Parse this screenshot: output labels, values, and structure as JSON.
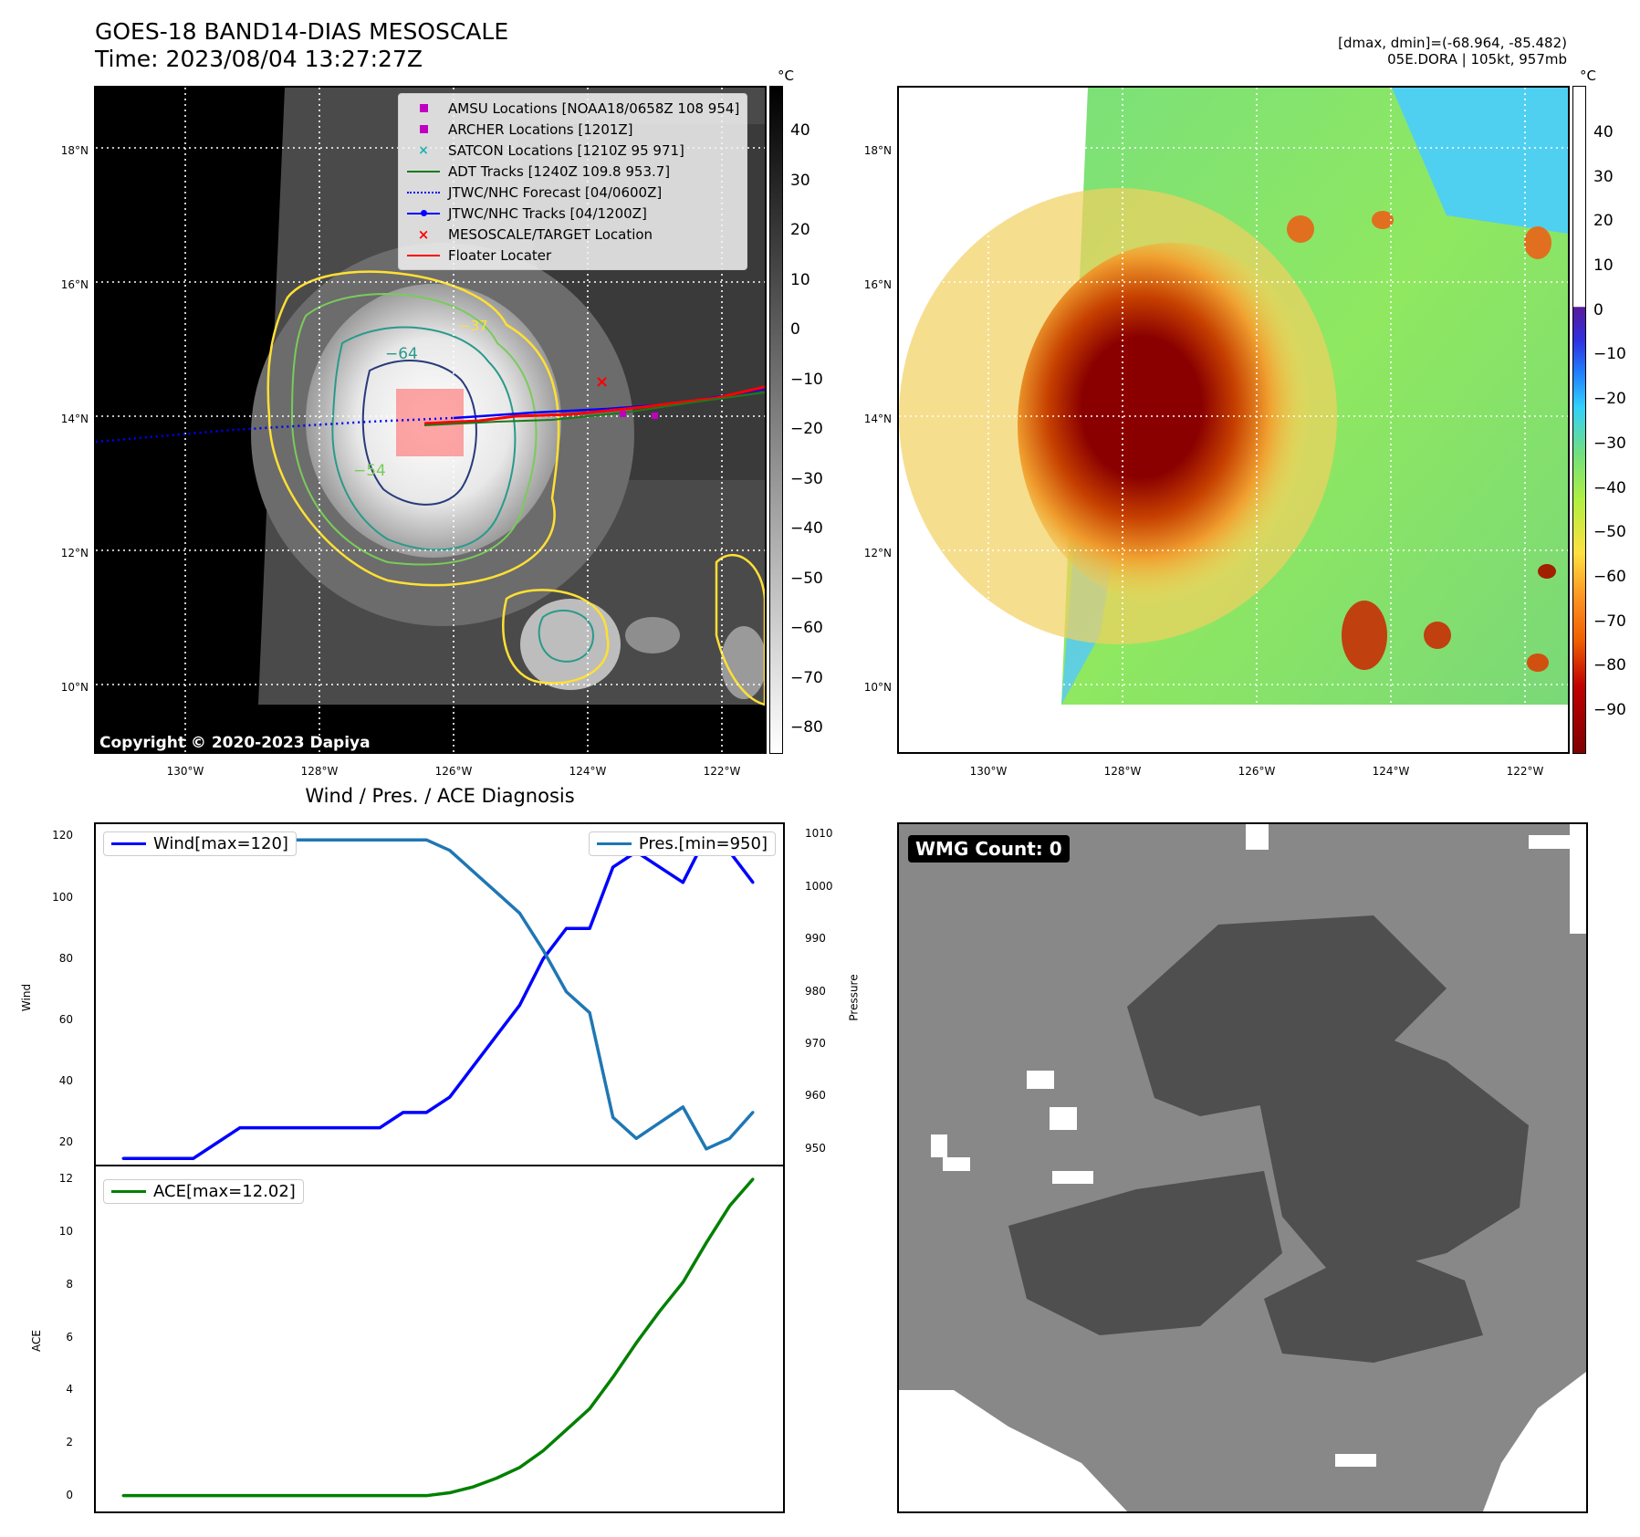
{
  "header": {
    "title_line1": "GOES-18 BAND14-DIAS MESOSCALE",
    "title_line2": "Time: 2023/08/04 13:27:27Z",
    "right_line1": "[dmax, dmin]=(-68.964, -85.482)",
    "right_line2": "05E.DORA | 105kt, 957mb"
  },
  "map_axes": {
    "lat_labels": [
      "18°N",
      "16°N",
      "14°N",
      "12°N",
      "10°N"
    ],
    "lon_labels": [
      "130°W",
      "128°W",
      "126°W",
      "124°W",
      "122°W"
    ]
  },
  "ir_panel": {
    "colorbar_unit": "°C",
    "colorbar_ticks": [
      "40",
      "30",
      "20",
      "10",
      "0",
      "−10",
      "−20",
      "−30",
      "−40",
      "−50",
      "−60",
      "−70",
      "−80"
    ],
    "contour_labels": [
      "−64",
      "−54",
      "−37"
    ],
    "copyright": "Copyright © 2020-2023 Dapiya",
    "legend": [
      {
        "label": "AMSU Locations [NOAA18/0658Z 108 954]",
        "color": "#c000c0"
      },
      {
        "label": "ARCHER Locations [1201Z]",
        "color": "#c000c0"
      },
      {
        "label": "SATCON Locations [1210Z 95 971]",
        "color": "#20b0b0"
      },
      {
        "label": "ADT Tracks [1240Z 109.8 953.7]",
        "color": "#1a7a1a"
      },
      {
        "label": "JTWC/NHC Forecast [04/0600Z]",
        "color": "#0000ff"
      },
      {
        "label": "JTWC/NHC Tracks [04/1200Z]",
        "color": "#0000ff"
      },
      {
        "label": "MESOSCALE/TARGET Location",
        "color": "#ff0000"
      },
      {
        "label": "Floater Locater",
        "color": "#ff0000"
      }
    ]
  },
  "color_panel": {
    "colorbar_unit": "°C",
    "colorbar_ticks": [
      "40",
      "30",
      "20",
      "10",
      "0",
      "−10",
      "−20",
      "−30",
      "−40",
      "−50",
      "−60",
      "−70",
      "−80",
      "−90"
    ]
  },
  "diag_panel": {
    "title": "Wind / Pres. / ACE Diagnosis",
    "wind_legend": "Wind[max=120]",
    "pres_legend": "Pres.[min=950]",
    "ace_legend": "ACE[max=12.02]",
    "wind_ylabel": "Wind",
    "pres_ylabel": "Pressure",
    "ace_ylabel": "ACE",
    "wind_ticks": [
      "120",
      "100",
      "80",
      "60",
      "40",
      "20"
    ],
    "pres_ticks": [
      "1010",
      "1000",
      "990",
      "980",
      "970",
      "960",
      "950"
    ],
    "ace_ticks": [
      "12",
      "10",
      "8",
      "6",
      "4",
      "2",
      "0"
    ]
  },
  "wmg_panel": {
    "label": "WMG Count: 0"
  },
  "chart_data": [
    {
      "type": "line",
      "title": "Wind / Pres. / ACE Diagnosis",
      "ylabel": "Wind",
      "ylim": [
        13,
        124
      ],
      "y2label": "Pressure",
      "y2lim": [
        947,
        1012
      ],
      "x": [
        0,
        1,
        2,
        3,
        4,
        5,
        6,
        7,
        8,
        9,
        10,
        11,
        12,
        13,
        14,
        15,
        16,
        17,
        18,
        19,
        20,
        21,
        22,
        23,
        24,
        25,
        26,
        27
      ],
      "series": [
        {
          "name": "Wind[max=120]",
          "color": "#0000ff",
          "axis": "left",
          "values": [
            15,
            15,
            15,
            15,
            20,
            25,
            25,
            25,
            25,
            25,
            25,
            25,
            30,
            30,
            35,
            45,
            55,
            65,
            80,
            90,
            90,
            110,
            115,
            110,
            105,
            120,
            115,
            105
          ]
        },
        {
          "name": "Pres.[min=950]",
          "color": "#1f77b4",
          "axis": "right",
          "values": [
            1010,
            1010,
            1010,
            1010,
            1010,
            1009,
            1009,
            1009,
            1009,
            1009,
            1009,
            1009,
            1009,
            1009,
            1007,
            1003,
            999,
            995,
            988,
            980,
            976,
            956,
            952,
            955,
            958,
            950,
            952,
            957
          ]
        }
      ]
    },
    {
      "type": "line",
      "ylabel": "ACE",
      "ylim": [
        -0.6,
        12.5
      ],
      "x": [
        0,
        1,
        2,
        3,
        4,
        5,
        6,
        7,
        8,
        9,
        10,
        11,
        12,
        13,
        14,
        15,
        16,
        17,
        18,
        19,
        20,
        21,
        22,
        23,
        24,
        25,
        26,
        27
      ],
      "series": [
        {
          "name": "ACE[max=12.02]",
          "color": "#008000",
          "values": [
            0,
            0,
            0,
            0,
            0,
            0,
            0,
            0,
            0,
            0,
            0,
            0,
            0,
            0,
            0.11,
            0.33,
            0.66,
            1.07,
            1.7,
            2.5,
            3.3,
            4.5,
            5.8,
            7.0,
            8.1,
            9.6,
            11.0,
            12.02
          ]
        }
      ]
    }
  ]
}
